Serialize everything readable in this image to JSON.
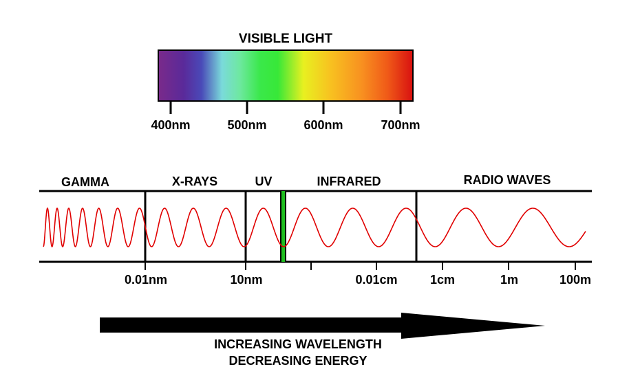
{
  "visible_light": {
    "title": "VISIBLE LIGHT",
    "ticks": [
      "400nm",
      "500nm",
      "600nm",
      "700nm"
    ]
  },
  "bands": [
    "GAMMA",
    "X-RAYS",
    "UV",
    "INFRARED",
    "RADIO WAVES"
  ],
  "scale_ticks": [
    "0.01nm",
    "10nm",
    "0.01cm",
    "1cm",
    "1m",
    "100m"
  ],
  "arrow": {
    "line1": "INCREASING WAVELENGTH",
    "line2": "DECREASING ENERGY"
  },
  "colors": {
    "wave": "#e00000",
    "visible_marker": "#1fbf1f",
    "spectrum": [
      "#7a2a8a",
      "#5a2a9a",
      "#4a4ab8",
      "#7adada",
      "#6ee8a0",
      "#3ae84a",
      "#38e838",
      "#e8f020",
      "#f8c020",
      "#f89020",
      "#f05a18",
      "#d81010"
    ]
  }
}
